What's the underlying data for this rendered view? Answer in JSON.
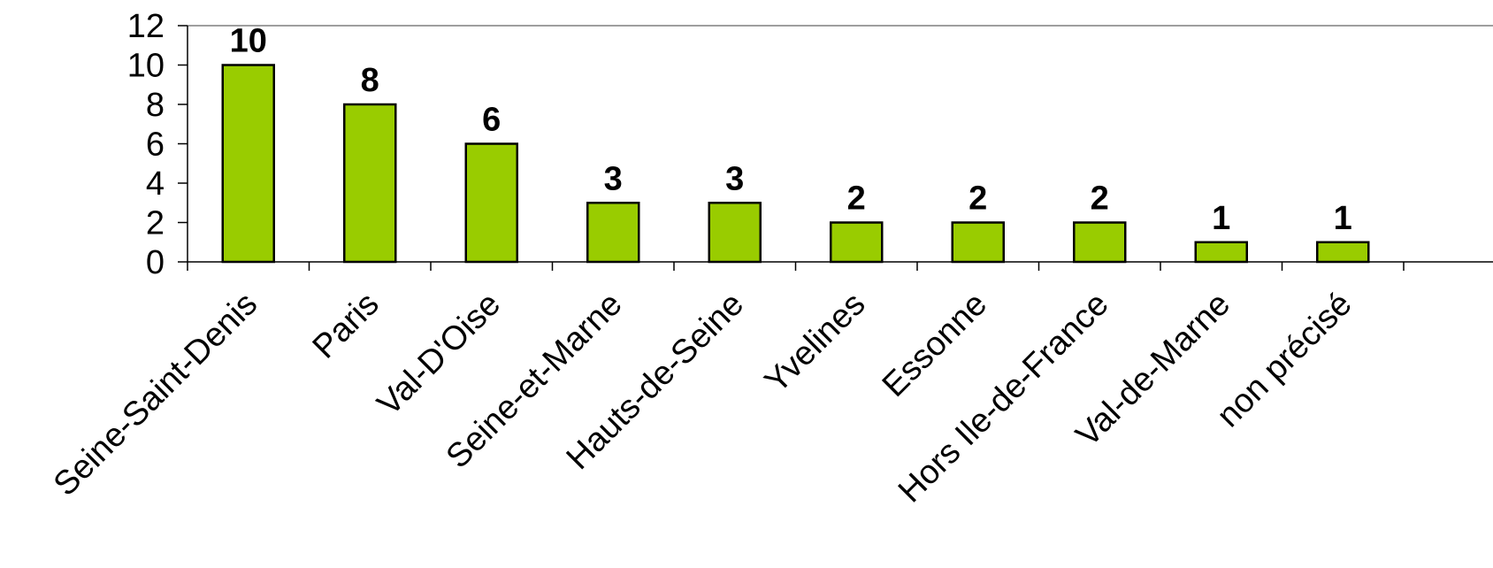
{
  "chart_data": {
    "type": "bar",
    "categories": [
      "Seine-Saint-Denis",
      "Paris",
      "Val-D'Oise",
      "Seine-et-Marne",
      "Hauts-de-Seine",
      "Yvelines",
      "Essonne",
      "Hors Ile-de-France",
      "Val-de-Marne",
      "non précisé"
    ],
    "values": [
      10,
      8,
      6,
      3,
      3,
      2,
      2,
      2,
      1,
      1
    ],
    "data_labels": [
      "10",
      "8",
      "6",
      "3",
      "3",
      "2",
      "2",
      "2",
      "1",
      "1"
    ],
    "title": "",
    "xlabel": "",
    "ylabel": "",
    "ylim": [
      0,
      12
    ],
    "yticks": [
      0,
      2,
      4,
      6,
      8,
      10,
      12
    ],
    "ytick_labels": [
      "0",
      "2",
      "4",
      "6",
      "8",
      "10",
      "12"
    ],
    "bar_color": "#99cc00",
    "grid": false,
    "legend": "none"
  }
}
